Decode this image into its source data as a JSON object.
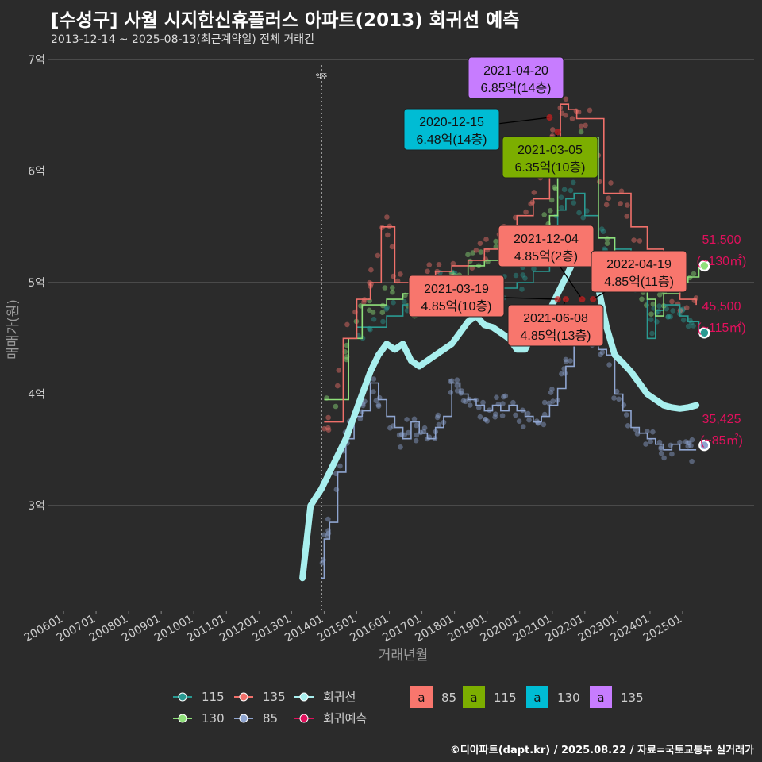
{
  "header": {
    "title": "[수성구] 사월 시지한신휴플러스 아파트(2013) 회귀선 예측",
    "subtitle": "2013-12-14 ~ 2025-08-13(최근계약일) 전체 거래건",
    "caption": "©디아파트(dapt.kr) / 2025.08.22 / 자료=국토교통부 실거래가"
  },
  "chart_data": {
    "type": "line",
    "xlabel": "거래년월",
    "ylabel": "매매가(원)",
    "y_unit": "억",
    "ylim": [
      2.1,
      7.1
    ],
    "xlim": [
      "2005-06",
      "2025-12"
    ],
    "y_ticks": [
      {
        "value": 3,
        "label": "3억"
      },
      {
        "value": 4,
        "label": "4억"
      },
      {
        "value": 5,
        "label": "5억"
      },
      {
        "value": 6,
        "label": "6억"
      },
      {
        "value": 7,
        "label": "7억"
      }
    ],
    "x_ticks": [
      "200601",
      "200701",
      "200801",
      "200901",
      "201001",
      "201101",
      "201201",
      "201301",
      "201401",
      "201501",
      "201601",
      "201701",
      "201801",
      "201901",
      "202001",
      "202101",
      "202201",
      "202301",
      "202401",
      "202501"
    ],
    "grid": true,
    "vline": {
      "x": "2013-12",
      "label": "입주"
    },
    "colors": {
      "85": "#8fa5d0",
      "115": "#2a9a92",
      "130": "#8fe07a",
      "135": "#f0706a",
      "trend": "#a8efee",
      "predict": "#e0105c"
    },
    "series": [
      {
        "name": "85",
        "color": "#8fa5d0",
        "points": [
          [
            "2013-12",
            2.35
          ],
          [
            "2014-01",
            2.7
          ],
          [
            "2014-03",
            2.85
          ],
          [
            "2014-06",
            3.3
          ],
          [
            "2014-09",
            3.6
          ],
          [
            "2014-12",
            3.8
          ],
          [
            "2015-03",
            3.85
          ],
          [
            "2015-06",
            4.1
          ],
          [
            "2015-09",
            3.95
          ],
          [
            "2015-12",
            3.8
          ],
          [
            "2016-03",
            3.7
          ],
          [
            "2016-06",
            3.6
          ],
          [
            "2016-09",
            3.75
          ],
          [
            "2016-12",
            3.65
          ],
          [
            "2017-03",
            3.6
          ],
          [
            "2017-06",
            3.7
          ],
          [
            "2017-09",
            3.8
          ],
          [
            "2017-12",
            4.1
          ],
          [
            "2018-03",
            4.0
          ],
          [
            "2018-06",
            3.95
          ],
          [
            "2018-09",
            3.9
          ],
          [
            "2018-12",
            3.85
          ],
          [
            "2019-03",
            3.9
          ],
          [
            "2019-06",
            3.85
          ],
          [
            "2019-09",
            3.9
          ],
          [
            "2019-12",
            3.85
          ],
          [
            "2020-03",
            3.8
          ],
          [
            "2020-06",
            3.75
          ],
          [
            "2020-09",
            3.8
          ],
          [
            "2020-12",
            3.9
          ],
          [
            "2021-03",
            4.05
          ],
          [
            "2021-06",
            4.25
          ],
          [
            "2021-09",
            4.5
          ],
          [
            "2021-12",
            4.6
          ],
          [
            "2022-03",
            4.55
          ],
          [
            "2022-06",
            4.4
          ],
          [
            "2022-09",
            4.35
          ],
          [
            "2022-12",
            4.0
          ],
          [
            "2023-03",
            3.85
          ],
          [
            "2023-06",
            3.7
          ],
          [
            "2023-09",
            3.65
          ],
          [
            "2023-12",
            3.6
          ],
          [
            "2024-03",
            3.55
          ],
          [
            "2024-06",
            3.5
          ],
          [
            "2024-09",
            3.55
          ],
          [
            "2024-12",
            3.5
          ],
          [
            "2025-03",
            3.5
          ],
          [
            "2025-06",
            3.5
          ]
        ]
      },
      {
        "name": "115",
        "color": "#2a9a92",
        "points": [
          [
            "2015-01",
            4.6
          ],
          [
            "2015-06",
            4.6
          ],
          [
            "2015-12",
            4.7
          ],
          [
            "2016-06",
            4.8
          ],
          [
            "2016-12",
            4.9
          ],
          [
            "2017-06",
            5.0
          ],
          [
            "2017-12",
            5.05
          ],
          [
            "2018-06",
            5.0
          ],
          [
            "2018-12",
            5.0
          ],
          [
            "2019-06",
            4.95
          ],
          [
            "2019-12",
            5.0
          ],
          [
            "2020-06",
            5.1
          ],
          [
            "2020-12",
            5.4
          ],
          [
            "2021-03",
            5.65
          ],
          [
            "2021-06",
            5.75
          ],
          [
            "2021-09",
            5.8
          ],
          [
            "2022-01",
            5.6
          ],
          [
            "2022-06",
            5.4
          ],
          [
            "2022-12",
            5.3
          ],
          [
            "2023-06",
            5.1
          ],
          [
            "2023-12",
            4.5
          ],
          [
            "2024-03",
            4.75
          ],
          [
            "2024-06",
            4.8
          ],
          [
            "2024-09",
            4.8
          ],
          [
            "2024-12",
            4.7
          ],
          [
            "2025-03",
            4.65
          ],
          [
            "2025-07",
            4.55
          ]
        ]
      },
      {
        "name": "130",
        "color": "#8fe07a",
        "points": [
          [
            "2014-01",
            3.95
          ],
          [
            "2014-06",
            3.95
          ],
          [
            "2014-10",
            4.5
          ],
          [
            "2015-03",
            4.8
          ],
          [
            "2015-06",
            4.8
          ],
          [
            "2015-12",
            4.85
          ],
          [
            "2016-06",
            4.9
          ],
          [
            "2016-09",
            4.75
          ],
          [
            "2016-12",
            4.75
          ],
          [
            "2017-06",
            4.9
          ],
          [
            "2017-12",
            5.0
          ],
          [
            "2018-06",
            5.15
          ],
          [
            "2018-12",
            5.2
          ],
          [
            "2019-06",
            5.3
          ],
          [
            "2019-12",
            5.25
          ],
          [
            "2020-06",
            5.35
          ],
          [
            "2020-12",
            5.6
          ],
          [
            "2021-03",
            6.05
          ],
          [
            "2021-06",
            6.2
          ],
          [
            "2021-12",
            6.3
          ],
          [
            "2022-06",
            5.4
          ],
          [
            "2022-12",
            5.2
          ],
          [
            "2023-06",
            5.0
          ],
          [
            "2023-12",
            4.85
          ],
          [
            "2024-03",
            4.7
          ],
          [
            "2024-06",
            4.9
          ],
          [
            "2024-12",
            5.0
          ],
          [
            "2025-03",
            5.05
          ],
          [
            "2025-07",
            5.15
          ]
        ]
      },
      {
        "name": "135",
        "color": "#f0706a",
        "points": [
          [
            "2014-01",
            3.75
          ],
          [
            "2014-04",
            3.75
          ],
          [
            "2014-08",
            4.5
          ],
          [
            "2015-01",
            4.85
          ],
          [
            "2015-06",
            5.0
          ],
          [
            "2015-10",
            5.5
          ],
          [
            "2016-01",
            5.5
          ],
          [
            "2016-03",
            5.0
          ],
          [
            "2016-09",
            5.0
          ],
          [
            "2017-06",
            5.1
          ],
          [
            "2017-12",
            5.15
          ],
          [
            "2018-06",
            5.2
          ],
          [
            "2018-12",
            5.3
          ],
          [
            "2019-06",
            5.5
          ],
          [
            "2019-12",
            5.6
          ],
          [
            "2020-06",
            5.75
          ],
          [
            "2020-12",
            6.2
          ],
          [
            "2021-04",
            6.6
          ],
          [
            "2021-07",
            6.55
          ],
          [
            "2021-10",
            6.47
          ],
          [
            "2022-03",
            6.47
          ],
          [
            "2022-08",
            5.8
          ],
          [
            "2023-02",
            5.8
          ],
          [
            "2023-06",
            5.5
          ],
          [
            "2023-12",
            5.3
          ],
          [
            "2024-06",
            5.0
          ],
          [
            "2024-12",
            4.85
          ],
          [
            "2025-06",
            4.8
          ]
        ]
      },
      {
        "name": "회귀선",
        "color": "#a8efee",
        "points": [
          [
            "2013-05",
            2.35
          ],
          [
            "2013-08",
            3.0
          ],
          [
            "2013-12",
            3.15
          ],
          [
            "2014-03",
            3.3
          ],
          [
            "2014-06",
            3.45
          ],
          [
            "2014-09",
            3.6
          ],
          [
            "2014-12",
            3.8
          ],
          [
            "2015-03",
            4.0
          ],
          [
            "2015-06",
            4.2
          ],
          [
            "2015-09",
            4.35
          ],
          [
            "2015-12",
            4.45
          ],
          [
            "2016-03",
            4.4
          ],
          [
            "2016-06",
            4.45
          ],
          [
            "2016-09",
            4.3
          ],
          [
            "2016-12",
            4.25
          ],
          [
            "2017-03",
            4.3
          ],
          [
            "2017-06",
            4.35
          ],
          [
            "2017-09",
            4.4
          ],
          [
            "2017-12",
            4.45
          ],
          [
            "2018-03",
            4.55
          ],
          [
            "2018-06",
            4.65
          ],
          [
            "2018-09",
            4.7
          ],
          [
            "2018-12",
            4.62
          ],
          [
            "2019-03",
            4.6
          ],
          [
            "2019-06",
            4.55
          ],
          [
            "2019-09",
            4.5
          ],
          [
            "2019-12",
            4.4
          ],
          [
            "2020-03",
            4.4
          ],
          [
            "2020-06",
            4.55
          ],
          [
            "2020-09",
            4.65
          ],
          [
            "2020-12",
            4.75
          ],
          [
            "2021-03",
            4.9
          ],
          [
            "2021-06",
            5.05
          ],
          [
            "2021-09",
            5.2
          ],
          [
            "2021-12",
            5.45
          ],
          [
            "2022-03",
            5.3
          ],
          [
            "2022-06",
            4.95
          ],
          [
            "2022-09",
            4.6
          ],
          [
            "2022-12",
            4.35
          ],
          [
            "2023-03",
            4.28
          ],
          [
            "2023-06",
            4.2
          ],
          [
            "2023-09",
            4.1
          ],
          [
            "2023-12",
            4.0
          ],
          [
            "2024-03",
            3.95
          ],
          [
            "2024-06",
            3.9
          ],
          [
            "2024-09",
            3.88
          ],
          [
            "2024-12",
            3.87
          ],
          [
            "2025-03",
            3.88
          ],
          [
            "2025-06",
            3.9
          ]
        ]
      }
    ],
    "scatter_colors": [
      "#f0706a",
      "#8fe07a",
      "#8fa5d0",
      "#2a9a92"
    ],
    "predictions": [
      {
        "area": "130",
        "value": "51,500",
        "range": "(~130㎡)",
        "x": "2025-09",
        "y": 5.15,
        "color": "#8fe07a"
      },
      {
        "area": "115",
        "value": "45,500",
        "range": "(~115㎡)",
        "x": "2025-09",
        "y": 4.55,
        "color": "#2a9a92"
      },
      {
        "area": "85",
        "value": "35,425",
        "range": "(~85㎡)",
        "x": "2025-09",
        "y": 3.54,
        "color": "#8fa5d0"
      }
    ],
    "annotations": [
      {
        "date": "2021-04-20",
        "price": "6.85억(14층)",
        "fill": "#c77cff",
        "x": "2021-04",
        "y": 6.85
      },
      {
        "date": "2020-12-15",
        "price": "6.48억(14층)",
        "fill": "#00bcd4",
        "x": "2020-12",
        "y": 6.48
      },
      {
        "date": "2021-03-05",
        "price": "6.35억(10층)",
        "fill": "#7cae00",
        "x": "2021-03",
        "y": 6.35
      },
      {
        "date": "2021-12-04",
        "price": "4.85억(2층)",
        "fill": "#f8766d",
        "x": "2021-12",
        "y": 4.85
      },
      {
        "date": "2022-04-19",
        "price": "4.85억(11층)",
        "fill": "#f8766d",
        "x": "2022-04",
        "y": 4.85
      },
      {
        "date": "2021-03-19",
        "price": "4.85억(10층)",
        "fill": "#f8766d",
        "x": "2021-03",
        "y": 4.85
      },
      {
        "date": "2021-06-08",
        "price": "4.85억(13층)",
        "fill": "#f8766d",
        "x": "2021-06",
        "y": 4.85
      }
    ],
    "legend": {
      "lines": [
        {
          "label": "115",
          "color": "#2a9a92"
        },
        {
          "label": "135",
          "color": "#f0706a"
        },
        {
          "label": "회귀선",
          "color": "#a8efee"
        },
        {
          "label": "130",
          "color": "#8fe07a"
        },
        {
          "label": "85",
          "color": "#8fa5d0"
        },
        {
          "label": "회귀예측",
          "color": "#e0105c"
        }
      ],
      "boxes": [
        {
          "label": "85",
          "color": "#f8766d"
        },
        {
          "label": "115",
          "color": "#7cae00"
        },
        {
          "label": "130",
          "color": "#00bcd4"
        },
        {
          "label": "135",
          "color": "#c77cff"
        }
      ],
      "box_letter": "a"
    }
  }
}
